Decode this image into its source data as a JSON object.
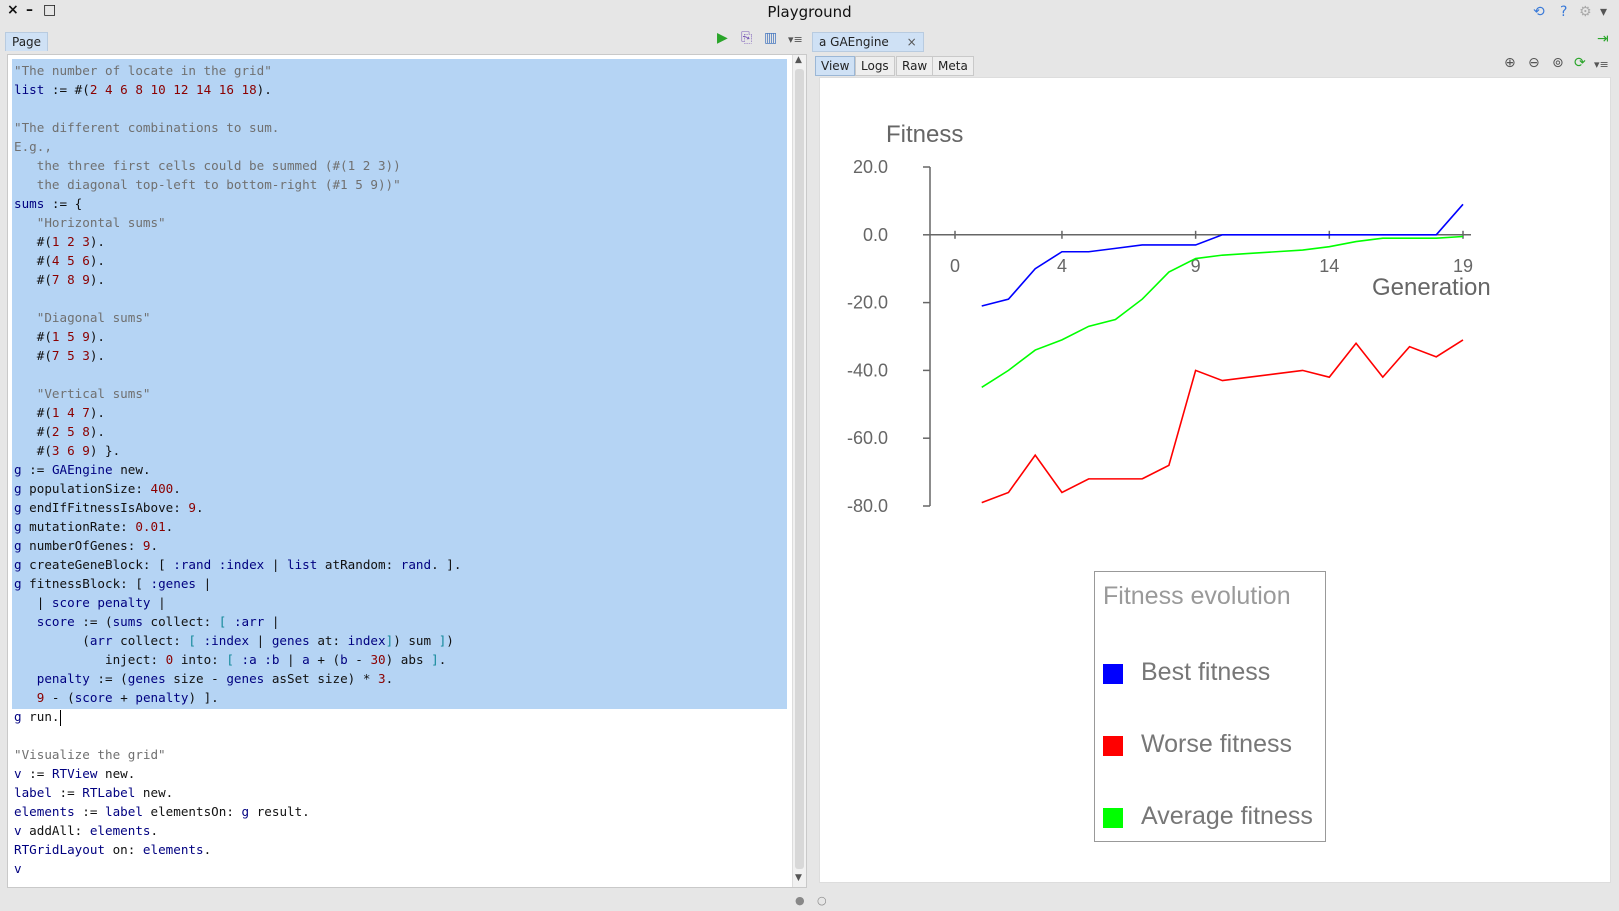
{
  "window": {
    "title": "Playground",
    "close_glyph": "×",
    "minimize_glyph": "–",
    "maximize_glyph": "□",
    "refresh_glyph": "⟲",
    "help_glyph": "?",
    "settings_glyph": "⚙",
    "menu_glyph": "▾"
  },
  "left_panel": {
    "tab_label": "Page",
    "toolbar_icons": [
      "run-icon",
      "inspect-icon",
      "bindings-icon",
      "menu-icon"
    ],
    "code_lines": [
      [
        [
          "c",
          "\"The number of locate in the grid\""
        ]
      ],
      [
        [
          "k",
          "list"
        ],
        [
          "p",
          " := #("
        ],
        [
          "n",
          "2 4 6 8 10 12 14 16 18"
        ],
        [
          "p",
          ")."
        ]
      ],
      [],
      [
        [
          "c",
          "\"The different combinations to sum."
        ]
      ],
      [
        [
          "c",
          "E.g.,"
        ]
      ],
      [
        [
          "c",
          "   the three first cells could be summed (#(1 2 3))"
        ]
      ],
      [
        [
          "c",
          "   the diagonal top-left to bottom-right (#1 5 9))\""
        ]
      ],
      [
        [
          "k",
          "sums"
        ],
        [
          "p",
          " := {"
        ]
      ],
      [
        [
          "c",
          "   \"Horizontal sums\""
        ]
      ],
      [
        [
          "p",
          "   #("
        ],
        [
          "n",
          "1 2 3"
        ],
        [
          "p",
          ")."
        ]
      ],
      [
        [
          "p",
          "   #("
        ],
        [
          "n",
          "4 5 6"
        ],
        [
          "p",
          ")."
        ]
      ],
      [
        [
          "p",
          "   #("
        ],
        [
          "n",
          "7 8 9"
        ],
        [
          "p",
          ")."
        ]
      ],
      [],
      [
        [
          "c",
          "   \"Diagonal sums\""
        ]
      ],
      [
        [
          "p",
          "   #("
        ],
        [
          "n",
          "1 5 9"
        ],
        [
          "p",
          ")."
        ]
      ],
      [
        [
          "p",
          "   #("
        ],
        [
          "n",
          "7 5 3"
        ],
        [
          "p",
          ")."
        ]
      ],
      [],
      [
        [
          "c",
          "   \"Vertical sums\""
        ]
      ],
      [
        [
          "p",
          "   #("
        ],
        [
          "n",
          "1 4 7"
        ],
        [
          "p",
          ")."
        ]
      ],
      [
        [
          "p",
          "   #("
        ],
        [
          "n",
          "2 5 8"
        ],
        [
          "p",
          ")."
        ]
      ],
      [
        [
          "p",
          "   #("
        ],
        [
          "n",
          "3 6 9"
        ],
        [
          "p",
          ") }."
        ]
      ],
      [
        [
          "k",
          "g"
        ],
        [
          "p",
          " := "
        ],
        [
          "k",
          "GAEngine"
        ],
        [
          "p",
          " new."
        ]
      ],
      [
        [
          "k",
          "g"
        ],
        [
          "p",
          " populationSize: "
        ],
        [
          "n",
          "400"
        ],
        [
          "p",
          "."
        ]
      ],
      [
        [
          "k",
          "g"
        ],
        [
          "p",
          " endIfFitnessIsAbove: "
        ],
        [
          "n",
          "9"
        ],
        [
          "p",
          "."
        ]
      ],
      [
        [
          "k",
          "g"
        ],
        [
          "p",
          " mutationRate: "
        ],
        [
          "n",
          "0.01"
        ],
        [
          "p",
          "."
        ]
      ],
      [
        [
          "k",
          "g"
        ],
        [
          "p",
          " numberOfGenes: "
        ],
        [
          "n",
          "9"
        ],
        [
          "p",
          "."
        ]
      ],
      [
        [
          "k",
          "g"
        ],
        [
          "p",
          " createGeneBlock: [ "
        ],
        [
          "k",
          ":rand :index"
        ],
        [
          "p",
          " | "
        ],
        [
          "k",
          "list"
        ],
        [
          "p",
          " atRandom: "
        ],
        [
          "k",
          "rand"
        ],
        [
          "p",
          ". ]."
        ]
      ],
      [
        [
          "k",
          "g"
        ],
        [
          "p",
          " fitnessBlock: [ "
        ],
        [
          "k",
          ":genes"
        ],
        [
          "p",
          " |"
        ]
      ],
      [
        [
          "p",
          "   | "
        ],
        [
          "k",
          "score penalty"
        ],
        [
          "p",
          " |"
        ]
      ],
      [
        [
          "p",
          "   "
        ],
        [
          "k",
          "score"
        ],
        [
          "p",
          " := ("
        ],
        [
          "k",
          "sums"
        ],
        [
          "p",
          " collect: "
        ],
        [
          "b",
          "["
        ],
        [
          "k",
          " :arr"
        ],
        [
          "p",
          " |"
        ]
      ],
      [
        [
          "p",
          "         ("
        ],
        [
          "k",
          "arr"
        ],
        [
          "p",
          " collect: "
        ],
        [
          "b",
          "["
        ],
        [
          "k",
          " :index"
        ],
        [
          "p",
          " | "
        ],
        [
          "k",
          "genes"
        ],
        [
          "p",
          " at: "
        ],
        [
          "k",
          "index"
        ],
        [
          "b",
          "]"
        ],
        [
          "p",
          ") sum "
        ],
        [
          "b",
          "]"
        ],
        [
          "p",
          ")"
        ]
      ],
      [
        [
          "p",
          "            inject: "
        ],
        [
          "n",
          "0"
        ],
        [
          "p",
          " into: "
        ],
        [
          "b",
          "["
        ],
        [
          "k",
          " :a :b"
        ],
        [
          "p",
          " | "
        ],
        [
          "k",
          "a"
        ],
        [
          "p",
          " + ("
        ],
        [
          "k",
          "b"
        ],
        [
          "p",
          " - "
        ],
        [
          "n",
          "30"
        ],
        [
          "p",
          ") abs "
        ],
        [
          "b",
          "]"
        ],
        [
          "p",
          "."
        ]
      ],
      [
        [
          "p",
          "   "
        ],
        [
          "k",
          "penalty"
        ],
        [
          "p",
          " := ("
        ],
        [
          "k",
          "genes"
        ],
        [
          "p",
          " size - "
        ],
        [
          "k",
          "genes"
        ],
        [
          "p",
          " asSet size) * "
        ],
        [
          "n",
          "3"
        ],
        [
          "p",
          "."
        ]
      ],
      [
        [
          "p",
          "   "
        ],
        [
          "n",
          "9"
        ],
        [
          "p",
          " - ("
        ],
        [
          "k",
          "score"
        ],
        [
          "p",
          " + "
        ],
        [
          "k",
          "penalty"
        ],
        [
          "p",
          ") ]."
        ]
      ],
      [
        [
          "k",
          "g"
        ],
        [
          "p",
          " run."
        ]
      ],
      [],
      [
        [
          "c",
          "\"Visualize the grid\""
        ]
      ],
      [
        [
          "k",
          "v"
        ],
        [
          "p",
          " := "
        ],
        [
          "k",
          "RTView"
        ],
        [
          "p",
          " new."
        ]
      ],
      [
        [
          "k",
          "label"
        ],
        [
          "p",
          " := "
        ],
        [
          "k",
          "RTLabel"
        ],
        [
          "p",
          " new."
        ]
      ],
      [
        [
          "k",
          "elements"
        ],
        [
          "p",
          " := "
        ],
        [
          "k",
          "label"
        ],
        [
          "p",
          " elementsOn: "
        ],
        [
          "k",
          "g"
        ],
        [
          "p",
          " result."
        ]
      ],
      [
        [
          "k",
          "v"
        ],
        [
          "p",
          " addAll: "
        ],
        [
          "k",
          "elements"
        ],
        [
          "p",
          "."
        ]
      ],
      [
        [
          "k",
          "RTGridLayout"
        ],
        [
          "p",
          " on: "
        ],
        [
          "k",
          "elements"
        ],
        [
          "p",
          "."
        ]
      ],
      [
        [
          "k",
          "v"
        ]
      ]
    ]
  },
  "right_panel": {
    "tab_label": "a GAEngine",
    "tab_close": "×",
    "subtabs": [
      "View",
      "Logs",
      "Raw",
      "Meta"
    ],
    "active_subtab": "View",
    "toolbar_icons": [
      "zoom-in-icon",
      "zoom-out-icon",
      "zoom-reset-icon",
      "refresh-icon",
      "menu-icon"
    ]
  },
  "chart_data": {
    "type": "line",
    "ylabel": "Fitness",
    "xlabel": "Generation",
    "x_ticks": [
      "0",
      "4",
      "9",
      "14",
      "19"
    ],
    "x_tick_values": [
      0,
      4,
      9,
      14,
      19
    ],
    "y_ticks": [
      "20.0",
      "0.0",
      "-20.0",
      "-40.0",
      "-60.0",
      "-80.0"
    ],
    "y_tick_values": [
      20,
      0,
      -20,
      -40,
      -60,
      -80
    ],
    "xlim": [
      0,
      20
    ],
    "ylim": [
      -80,
      20
    ],
    "x": [
      1,
      2,
      3,
      4,
      5,
      6,
      7,
      8,
      9,
      10,
      11,
      12,
      13,
      14,
      15,
      16,
      17,
      18,
      19
    ],
    "series": [
      {
        "name": "Best fitness",
        "color": "#0000ff",
        "values": [
          -21,
          -19,
          -10,
          -5,
          -5,
          -4,
          -3,
          -3,
          -3,
          0,
          0,
          0,
          0,
          0,
          0,
          0,
          0,
          0,
          9
        ]
      },
      {
        "name": "Worse fitness",
        "color": "#ff0000",
        "values": [
          -79,
          -76,
          -65,
          -76,
          -72,
          -72,
          -72,
          -68,
          -40,
          -43,
          -42,
          -41,
          -40,
          -42,
          -32,
          -42,
          -33,
          -36,
          -31
        ]
      },
      {
        "name": "Average fitness",
        "color": "#00ff00",
        "values": [
          -45,
          -40,
          -34,
          -31,
          -27,
          -25,
          -19,
          -11,
          -7,
          -6,
          -5.5,
          -5,
          -4.5,
          -3.5,
          -2,
          -1,
          -1,
          -1,
          -0.5
        ]
      }
    ],
    "legend_title": "Fitness evolution",
    "legend_position": "bottom-center"
  }
}
